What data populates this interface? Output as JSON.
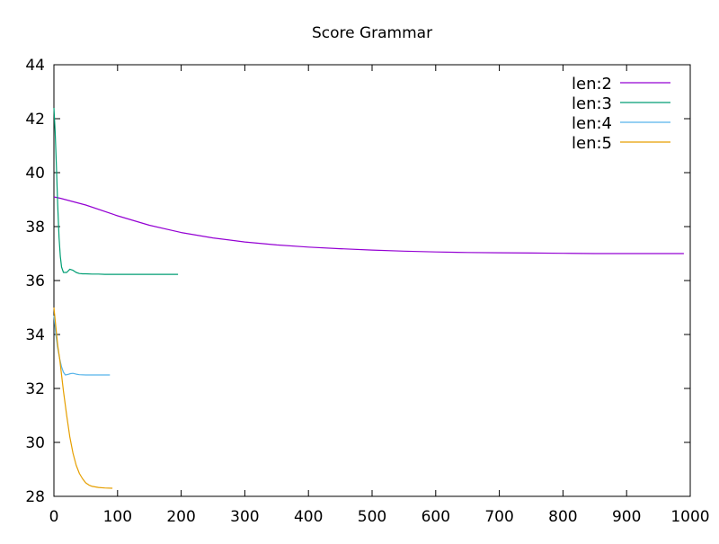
{
  "chart_data": {
    "type": "line",
    "title": "Score Grammar",
    "xlabel": "",
    "ylabel": "",
    "xlim": [
      0,
      1000
    ],
    "ylim": [
      28,
      44
    ],
    "xticks": [
      0,
      100,
      200,
      300,
      400,
      500,
      600,
      700,
      800,
      900,
      1000
    ],
    "yticks": [
      28,
      30,
      32,
      34,
      36,
      38,
      40,
      42,
      44
    ],
    "grid": false,
    "legend_position": "top-right",
    "series": [
      {
        "name": "len:2",
        "color": "#9400d3",
        "x": [
          0,
          10,
          50,
          100,
          150,
          200,
          250,
          300,
          350,
          400,
          450,
          500,
          550,
          600,
          650,
          700,
          750,
          800,
          850,
          900,
          950,
          990
        ],
        "y": [
          39.1,
          39.05,
          38.8,
          38.4,
          38.05,
          37.78,
          37.58,
          37.43,
          37.32,
          37.24,
          37.18,
          37.13,
          37.09,
          37.06,
          37.04,
          37.03,
          37.02,
          37.01,
          37.0,
          37.0,
          37.0,
          37.0
        ]
      },
      {
        "name": "len:3",
        "color": "#009e73",
        "x": [
          0,
          2,
          4,
          6,
          8,
          10,
          12,
          15,
          20,
          25,
          30,
          35,
          40,
          45,
          50,
          60,
          70,
          80,
          100,
          150,
          195
        ],
        "y": [
          42.4,
          41.5,
          40.2,
          38.8,
          37.6,
          36.9,
          36.5,
          36.3,
          36.3,
          36.42,
          36.38,
          36.3,
          36.26,
          36.25,
          36.25,
          36.24,
          36.24,
          36.23,
          36.23,
          36.23,
          36.23
        ]
      },
      {
        "name": "len:4",
        "color": "#56b4e9",
        "x": [
          0,
          3,
          6,
          9,
          12,
          15,
          18,
          22,
          26,
          30,
          35,
          40,
          50,
          60,
          70,
          80,
          88
        ],
        "y": [
          34.7,
          34.0,
          33.5,
          33.1,
          32.8,
          32.6,
          32.5,
          32.52,
          32.55,
          32.56,
          32.53,
          32.51,
          32.5,
          32.5,
          32.5,
          32.5,
          32.5
        ]
      },
      {
        "name": "len:5",
        "color": "#e69f00",
        "x": [
          0,
          3,
          6,
          9,
          12,
          15,
          20,
          25,
          30,
          35,
          40,
          45,
          50,
          55,
          60,
          70,
          80,
          92
        ],
        "y": [
          35.0,
          34.3,
          33.6,
          33.1,
          32.5,
          31.9,
          31.0,
          30.2,
          29.6,
          29.15,
          28.85,
          28.65,
          28.5,
          28.42,
          28.37,
          28.33,
          28.31,
          28.3
        ]
      }
    ]
  }
}
